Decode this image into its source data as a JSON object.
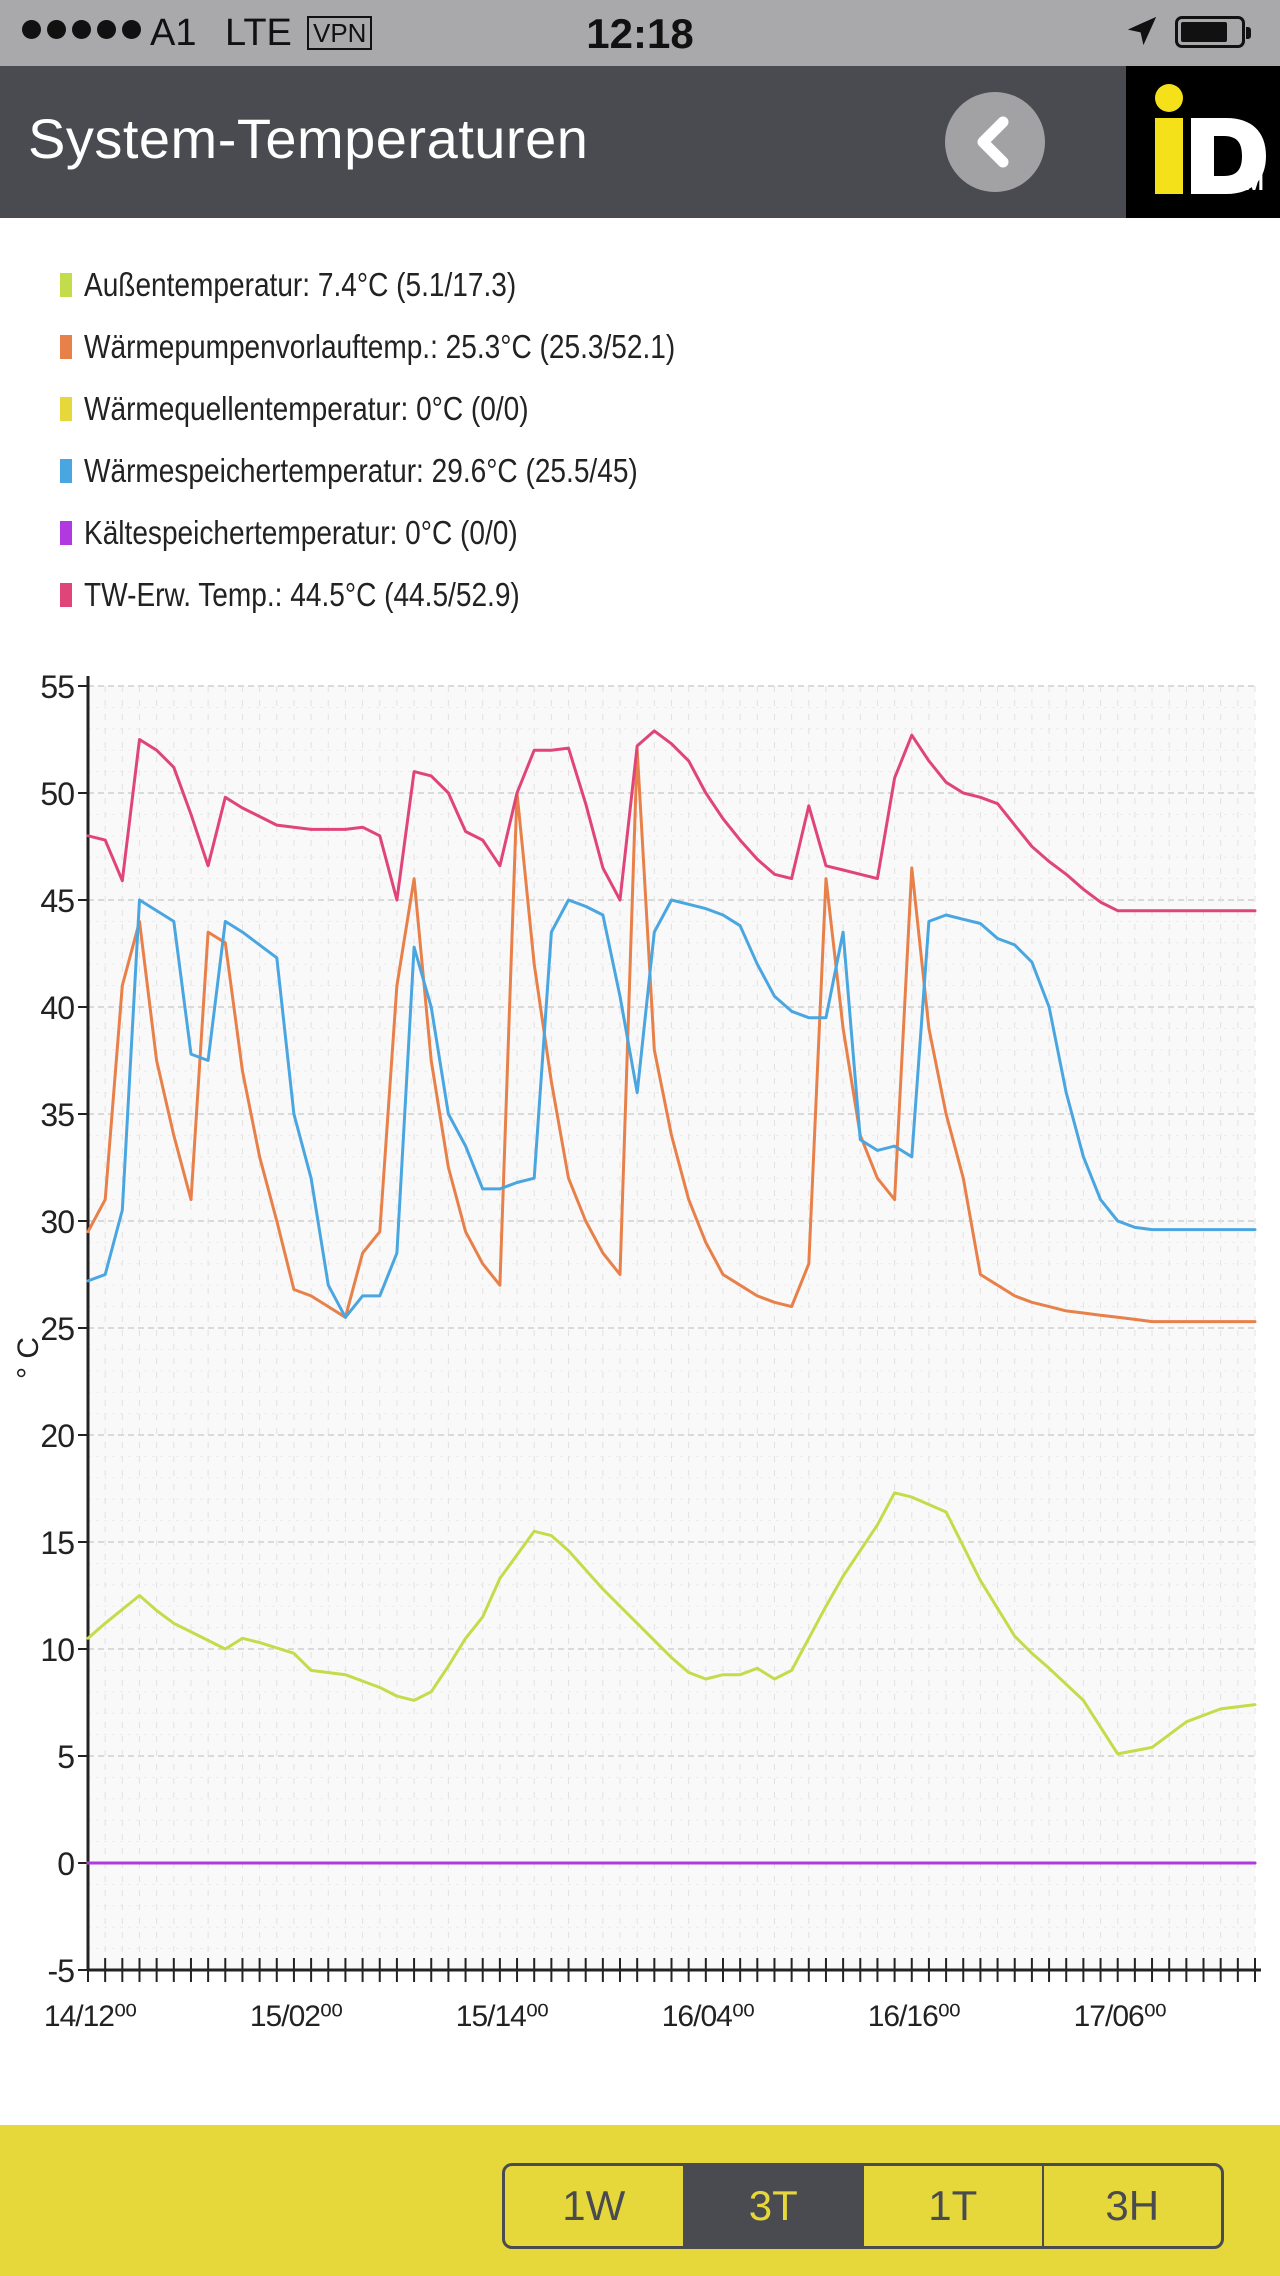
{
  "status_bar": {
    "carrier": "A1",
    "network": "LTE",
    "vpn": "VPN",
    "time": "12:18",
    "icons": [
      "signal-dots-icon",
      "location-arrow-icon",
      "battery-icon"
    ]
  },
  "header": {
    "title": "System-Temperaturen",
    "back_icon": "chevron-left-icon",
    "logo_text": "iD",
    "logo_sub": "M",
    "colors": {
      "bar": "#4a4b50",
      "logo_yellow": "#f5e11a"
    }
  },
  "legend": [
    {
      "label": "Außentemperatur: 7.4°C (5.1/17.3)",
      "color": "#c3dc4a"
    },
    {
      "label": "Wärmepumpenvorlauftemp.: 25.3°C (25.3/52.1)",
      "color": "#e8804a"
    },
    {
      "label": "Wärmequellentemperatur: 0°C (0/0)",
      "color": "#e6d83b"
    },
    {
      "label": "Wärmespeichertemperatur: 29.6°C (25.5/45)",
      "color": "#4aa6e0"
    },
    {
      "label": "Kältespeichertemperatur: 0°C (0/0)",
      "color": "#b03ae0"
    },
    {
      "label": "TW-Erw. Temp.: 44.5°C (44.5/52.9)",
      "color": "#e0457a"
    }
  ],
  "chart_data": {
    "type": "line",
    "ylabel": "° C",
    "ylim": [
      -5,
      55
    ],
    "yticks": [
      -5,
      0,
      5,
      10,
      15,
      20,
      25,
      30,
      35,
      40,
      45,
      50,
      55
    ],
    "xlabels": [
      "14/12⁰⁰",
      "15/02⁰⁰",
      "15/14⁰⁰",
      "16/04⁰⁰",
      "16/16⁰⁰",
      "17/06⁰⁰"
    ],
    "xrange_hours": [
      0,
      68
    ],
    "grid": true,
    "series": [
      {
        "name": "Außentemperatur",
        "color": "#c3dc4a",
        "x": [
          0,
          1,
          3,
          4,
          5,
          6,
          8,
          9,
          10,
          12,
          13,
          15,
          17,
          18,
          19,
          20,
          21,
          22,
          23,
          24,
          26,
          27,
          28,
          30,
          32,
          34,
          35,
          36,
          37,
          38,
          39,
          40,
          41,
          43,
          44,
          46,
          47,
          48,
          50,
          52,
          54,
          55,
          56,
          58,
          60,
          62,
          64,
          66,
          68
        ],
        "y": [
          10.5,
          11.2,
          12.5,
          11.8,
          11.2,
          10.8,
          10,
          10.5,
          10.3,
          9.8,
          9,
          8.8,
          8.2,
          7.8,
          7.6,
          8,
          9.2,
          10.5,
          11.5,
          13.3,
          15.5,
          15.3,
          14.6,
          12.8,
          11.2,
          9.6,
          8.9,
          8.6,
          8.8,
          8.8,
          9.1,
          8.6,
          9,
          12,
          13.4,
          15.8,
          17.3,
          17.1,
          16.4,
          13.2,
          10.6,
          9.8,
          9.1,
          7.6,
          5.1,
          5.4,
          6.6,
          7.2,
          7.4
        ]
      },
      {
        "name": "Wärmepumpenvorlauftemp.",
        "color": "#e8804a",
        "x": [
          0,
          1,
          2,
          3,
          4,
          5,
          6,
          7,
          8,
          9,
          10,
          11,
          12,
          13,
          14,
          15,
          16,
          17,
          18,
          19,
          20,
          21,
          22,
          23,
          24,
          25,
          26,
          27,
          28,
          29,
          30,
          31,
          32,
          33,
          34,
          35,
          36,
          37,
          38,
          39,
          40,
          41,
          42,
          43,
          44,
          45,
          46,
          47,
          48,
          49,
          50,
          51,
          52,
          53,
          54,
          55,
          56,
          57,
          58,
          59,
          60,
          61,
          62,
          63,
          64,
          65,
          66,
          67,
          68
        ],
        "y": [
          29.5,
          31,
          41,
          44,
          37.5,
          34,
          31,
          43.5,
          43,
          37,
          33,
          30,
          26.8,
          26.5,
          26,
          25.5,
          28.5,
          29.5,
          41,
          46,
          37.5,
          32.5,
          29.5,
          28,
          27,
          50,
          42,
          36.5,
          32,
          30,
          28.5,
          27.5,
          52,
          38,
          34,
          31,
          29,
          27.5,
          27,
          26.5,
          26.2,
          26,
          28,
          46,
          39,
          34,
          32,
          31,
          46.5,
          39,
          35,
          32,
          27.5,
          27,
          26.5,
          26.2,
          26,
          25.8,
          25.7,
          25.6,
          25.5,
          25.4,
          25.3,
          25.3,
          25.3,
          25.3,
          25.3,
          25.3,
          25.3
        ]
      },
      {
        "name": "Wärmequellentemperatur",
        "color": "#e6d83b",
        "x": [
          0,
          68
        ],
        "y": [
          0,
          0
        ]
      },
      {
        "name": "Wärmespeichertemperatur",
        "color": "#4aa6e0",
        "x": [
          0,
          1,
          2,
          3,
          5,
          6,
          7,
          8,
          9,
          11,
          12,
          13,
          14,
          15,
          16,
          17,
          18,
          19,
          20,
          21,
          22,
          23,
          24,
          25,
          26,
          27,
          28,
          29,
          30,
          31,
          32,
          33,
          34,
          35,
          36,
          37,
          38,
          39,
          40,
          41,
          42,
          43,
          44,
          45,
          46,
          47,
          48,
          49,
          50,
          51,
          52,
          53,
          54,
          55,
          56,
          57,
          58,
          59,
          60,
          61,
          62,
          63,
          64,
          65,
          66,
          67,
          68
        ],
        "y": [
          27.2,
          27.5,
          30.5,
          45,
          44,
          37.8,
          37.5,
          44,
          43.5,
          42.3,
          35,
          32,
          27,
          25.5,
          26.5,
          26.5,
          28.5,
          42.8,
          40,
          35,
          33.5,
          31.5,
          31.5,
          31.8,
          32,
          43.5,
          45,
          44.7,
          44.3,
          40.5,
          36,
          43.5,
          45,
          44.8,
          44.6,
          44.3,
          43.8,
          42,
          40.5,
          39.8,
          39.5,
          39.5,
          43.5,
          33.8,
          33.3,
          33.5,
          33,
          44,
          44.3,
          44.1,
          43.9,
          43.2,
          42.9,
          42.1,
          40,
          36,
          33,
          31,
          30,
          29.7,
          29.6,
          29.6,
          29.6,
          29.6,
          29.6,
          29.6,
          29.6
        ]
      },
      {
        "name": "Kältespeichertemperatur",
        "color": "#b03ae0",
        "x": [
          0,
          68
        ],
        "y": [
          0,
          0
        ]
      },
      {
        "name": "TW-Erw. Temp.",
        "color": "#e0457a",
        "x": [
          0,
          1,
          2,
          3,
          4,
          5,
          6,
          7,
          8,
          9,
          10,
          11,
          12,
          13,
          14,
          15,
          16,
          17,
          18,
          19,
          20,
          21,
          22,
          23,
          24,
          25,
          26,
          27,
          28,
          29,
          30,
          31,
          32,
          33,
          34,
          35,
          36,
          37,
          38,
          39,
          40,
          41,
          42,
          43,
          44,
          45,
          46,
          47,
          48,
          49,
          50,
          51,
          52,
          53,
          54,
          55,
          56,
          57,
          58,
          59,
          60,
          61,
          62,
          63,
          64,
          65,
          66,
          67,
          68
        ],
        "y": [
          48,
          47.8,
          45.9,
          52.5,
          52,
          51.2,
          49,
          46.6,
          49.8,
          49.3,
          48.9,
          48.5,
          48.4,
          48.3,
          48.3,
          48.3,
          48.4,
          48,
          45,
          51,
          50.8,
          50,
          48.2,
          47.8,
          46.6,
          50,
          52,
          52,
          52.1,
          49.5,
          46.5,
          45,
          52.2,
          52.9,
          52.3,
          51.5,
          50,
          48.8,
          47.8,
          46.9,
          46.2,
          46,
          49.4,
          46.6,
          46.4,
          46.2,
          46,
          50.7,
          52.7,
          51.5,
          50.5,
          50,
          49.8,
          49.5,
          48.5,
          47.5,
          46.8,
          46.2,
          45.5,
          44.9,
          44.5,
          44.5,
          44.5,
          44.5,
          44.5,
          44.5,
          44.5,
          44.5,
          44.5
        ]
      }
    ]
  },
  "footer": {
    "ranges": [
      "1W",
      "3T",
      "1T",
      "3H"
    ],
    "active": "3T",
    "colors": {
      "bar": "#e6d83b",
      "segment": "#4a4b50"
    }
  }
}
